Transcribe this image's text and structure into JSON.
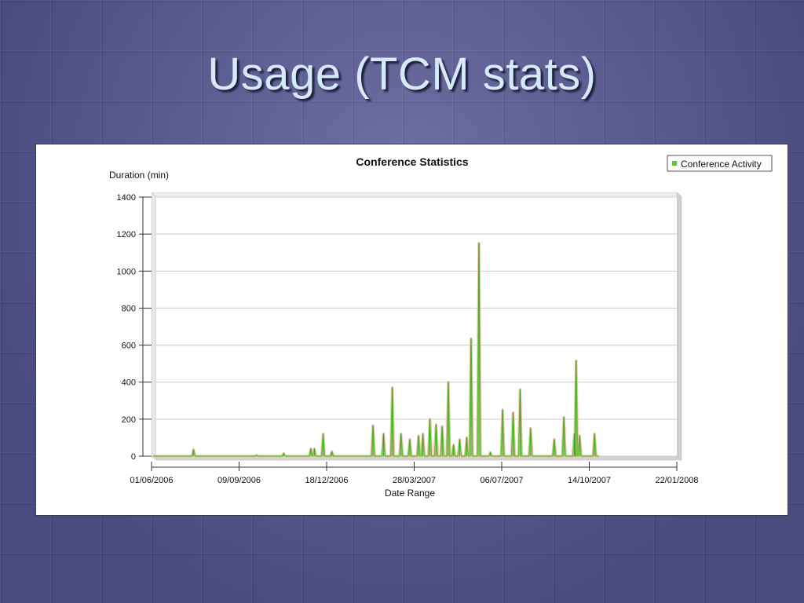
{
  "slide": {
    "title": "Usage (TCM stats)"
  },
  "colors": {
    "accent_series": "#5ec832",
    "spike_tint": "#f2c6b6",
    "title_text": "#d6e9fb",
    "background": "#5d5e93"
  },
  "chart_data": {
    "type": "line",
    "title": "Conference Statistics",
    "ylabel": "Duration (min)",
    "xlabel": "Date Range",
    "legend": {
      "position": "top-right",
      "entries": [
        "Conference Activity"
      ]
    },
    "x_axis": {
      "type": "date",
      "range": [
        "01/06/2006",
        "22/01/2008"
      ],
      "tick_labels": [
        "01/06/2006",
        "09/09/2006",
        "18/12/2006",
        "28/03/2007",
        "06/07/2007",
        "14/10/2007",
        "22/01/2008"
      ]
    },
    "y_axis": {
      "range": [
        0,
        1400
      ],
      "ticks": [
        0,
        200,
        400,
        600,
        800,
        1000,
        1200,
        1400
      ]
    },
    "grid": true,
    "series": [
      {
        "name": "Conference Activity",
        "points": [
          {
            "x": "19/07/2006",
            "y": 35
          },
          {
            "x": "29/09/2006",
            "y": 5
          },
          {
            "x": "30/10/2006",
            "y": 15
          },
          {
            "x": "30/11/2006",
            "y": 40
          },
          {
            "x": "04/12/2006",
            "y": 40
          },
          {
            "x": "14/12/2006",
            "y": 120
          },
          {
            "x": "24/12/2006",
            "y": 25
          },
          {
            "x": "09/02/2007",
            "y": 165
          },
          {
            "x": "21/02/2007",
            "y": 120
          },
          {
            "x": "03/03/2007",
            "y": 370
          },
          {
            "x": "13/03/2007",
            "y": 120
          },
          {
            "x": "23/03/2007",
            "y": 90
          },
          {
            "x": "02/04/2007",
            "y": 110
          },
          {
            "x": "07/04/2007",
            "y": 120
          },
          {
            "x": "15/04/2007",
            "y": 200
          },
          {
            "x": "22/04/2007",
            "y": 170
          },
          {
            "x": "29/04/2007",
            "y": 160
          },
          {
            "x": "06/05/2007",
            "y": 400
          },
          {
            "x": "12/05/2007",
            "y": 60
          },
          {
            "x": "19/05/2007",
            "y": 90
          },
          {
            "x": "27/05/2007",
            "y": 100
          },
          {
            "x": "01/06/2007",
            "y": 635
          },
          {
            "x": "10/06/2007",
            "y": 1150
          },
          {
            "x": "23/06/2007",
            "y": 20
          },
          {
            "x": "07/07/2007",
            "y": 250
          },
          {
            "x": "19/07/2007",
            "y": 235
          },
          {
            "x": "27/07/2007",
            "y": 360
          },
          {
            "x": "08/08/2007",
            "y": 150
          },
          {
            "x": "04/09/2007",
            "y": 90
          },
          {
            "x": "15/09/2007",
            "y": 210
          },
          {
            "x": "27/09/2007",
            "y": 120
          },
          {
            "x": "29/09/2007",
            "y": 515
          },
          {
            "x": "03/10/2007",
            "y": 110
          },
          {
            "x": "20/10/2007",
            "y": 120
          }
        ]
      }
    ]
  }
}
